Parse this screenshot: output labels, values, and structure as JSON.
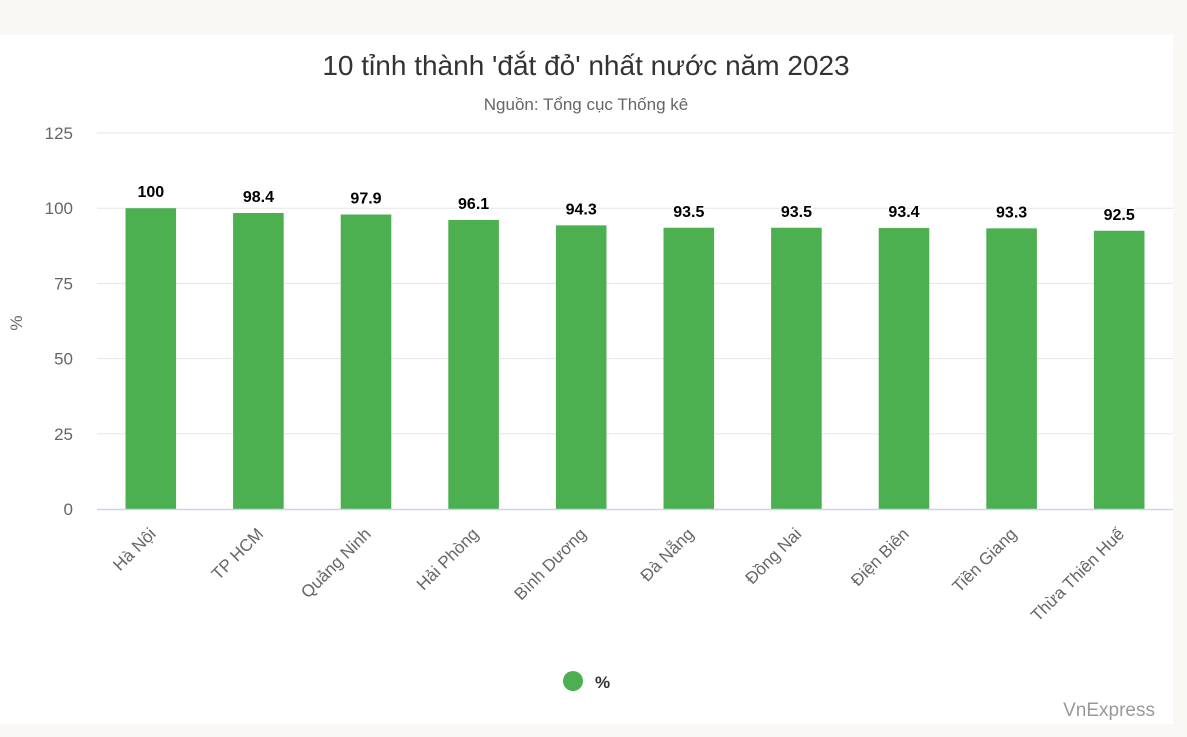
{
  "colors": {
    "bar": "#4caf50",
    "grid": "#e6e6e6",
    "axis_line": "#ccd6eb"
  },
  "chart_data": {
    "type": "bar",
    "title": "10 tỉnh thành 'đắt đỏ' nhất nước năm 2023",
    "subtitle": "Nguồn: Tổng cục Thống kê",
    "xlabel": "",
    "ylabel": "%",
    "ylim": [
      0,
      125
    ],
    "yticks": [
      0,
      25,
      50,
      75,
      100,
      125
    ],
    "grid": true,
    "legend_position": "bottom-center",
    "categories": [
      "Hà Nội",
      "TP HCM",
      "Quảng Ninh",
      "Hải Phòng",
      "Bình Dương",
      "Đà Nẵng",
      "Đồng Nai",
      "Điện Biên",
      "Tiền Giang",
      "Thừa Thiên Huế"
    ],
    "series": [
      {
        "name": "%",
        "color": "#4caf50",
        "values": [
          100,
          98.4,
          97.9,
          96.1,
          94.3,
          93.5,
          93.5,
          93.4,
          93.3,
          92.5
        ]
      }
    ],
    "credit": "VnExpress"
  }
}
